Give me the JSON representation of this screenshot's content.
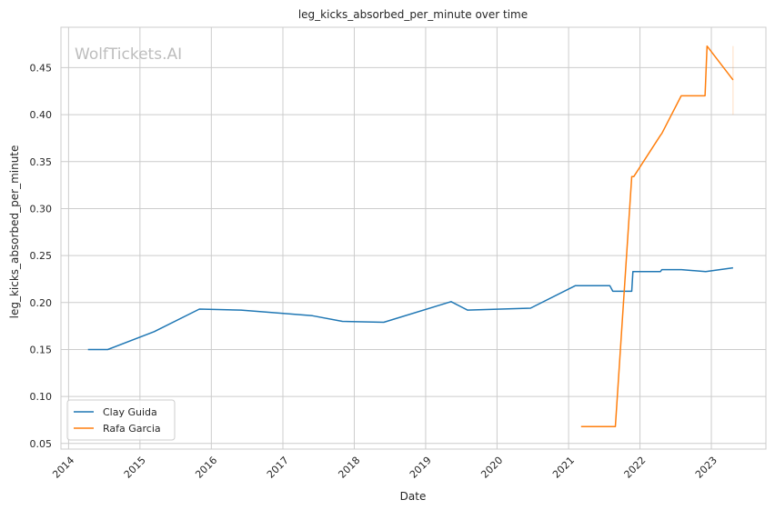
{
  "watermark": "WolfTickets.AI",
  "chart_data": {
    "type": "line",
    "title": "leg_kicks_absorbed_per_minute over time",
    "xlabel": "Date",
    "ylabel": "leg_kicks_absorbed_per_minute",
    "x_ticks": [
      "2014",
      "2015",
      "2016",
      "2017",
      "2018",
      "2019",
      "2020",
      "2021",
      "2022",
      "2023"
    ],
    "y_ticks": [
      "0.05",
      "0.10",
      "0.15",
      "0.20",
      "0.25",
      "0.30",
      "0.35",
      "0.40",
      "0.45"
    ],
    "xlim": [
      "2013-11-23",
      "2023-10-07"
    ],
    "ylim": [
      0.044,
      0.493
    ],
    "grid": true,
    "legend_position": "lower-left",
    "series": [
      {
        "name": "Clay Guida",
        "color": "#1f77b4",
        "points": [
          [
            "2014-04-10",
            0.15
          ],
          [
            "2014-07-20",
            0.15
          ],
          [
            "2015-03-15",
            0.169
          ],
          [
            "2015-11-01",
            0.193
          ],
          [
            "2016-06-01",
            0.192
          ],
          [
            "2017-06-01",
            0.186
          ],
          [
            "2017-11-01",
            0.18
          ],
          [
            "2018-06-01",
            0.179
          ],
          [
            "2019-05-11",
            0.201
          ],
          [
            "2019-08-03",
            0.192
          ],
          [
            "2020-06-20",
            0.194
          ],
          [
            "2021-02-05",
            0.218
          ],
          [
            "2021-07-31",
            0.218
          ],
          [
            "2021-08-15",
            0.212
          ],
          [
            "2021-11-20",
            0.212
          ],
          [
            "2021-11-26",
            0.233
          ],
          [
            "2022-04-16",
            0.233
          ],
          [
            "2022-04-23",
            0.235
          ],
          [
            "2022-08-01",
            0.235
          ],
          [
            "2022-12-03",
            0.233
          ],
          [
            "2023-04-22",
            0.237
          ]
        ]
      },
      {
        "name": "Rafa Garcia",
        "color": "#ff7f0e",
        "points": [
          [
            "2021-03-06",
            0.068
          ],
          [
            "2021-08-28",
            0.068
          ],
          [
            "2021-11-20",
            0.334
          ],
          [
            "2021-11-30",
            0.334
          ],
          [
            "2022-04-16",
            0.378
          ],
          [
            "2022-04-23",
            0.38
          ],
          [
            "2022-07-31",
            0.42
          ],
          [
            "2022-11-30",
            0.42
          ],
          [
            "2022-12-10",
            0.473
          ],
          [
            "2023-04-22",
            0.437
          ]
        ]
      }
    ]
  }
}
